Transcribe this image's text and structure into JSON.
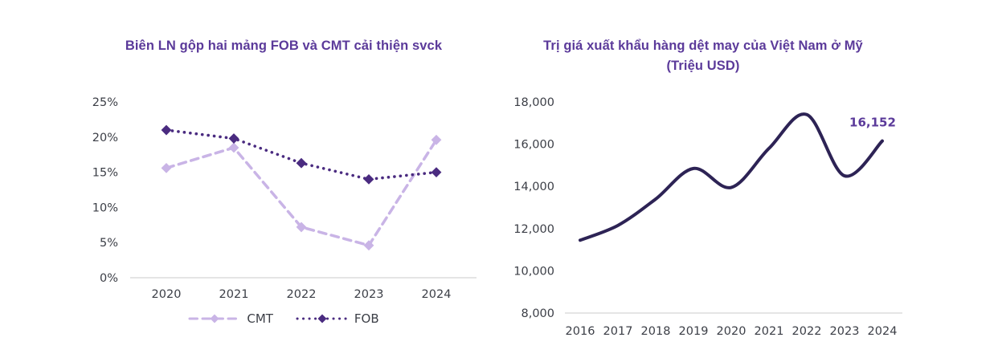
{
  "colors": {
    "page_bg": "#ffffff",
    "title": "#5B3A9A",
    "annotation": "#5B3A9A",
    "tick_text": "#3B3E46",
    "axis_line": "#D5D5D5",
    "cmt_series": "#C9B4E6",
    "fob_series": "#4A2B80",
    "export_line": "#2D2355"
  },
  "chart_data": [
    {
      "type": "line",
      "title": "Biên LN gộp hai mảng FOB và CMT cải thiện svck",
      "categories": [
        "2020",
        "2021",
        "2022",
        "2023",
        "2024"
      ],
      "series": [
        {
          "name": "CMT",
          "values": [
            15.6,
            18.5,
            7.2,
            4.6,
            19.6
          ],
          "color": "#C9B4E6",
          "style": "dashed",
          "marker": "diamond"
        },
        {
          "name": "FOB",
          "values": [
            21.0,
            19.8,
            16.3,
            14.0,
            15.0
          ],
          "color": "#4A2B80",
          "style": "dotted",
          "marker": "diamond"
        }
      ],
      "ylim": [
        0,
        25
      ],
      "ytick_values": [
        0,
        5,
        10,
        15,
        20,
        25
      ],
      "ytick_labels": [
        "0%",
        "5%",
        "10%",
        "15%",
        "20%",
        "25%"
      ],
      "grid": false,
      "legend_position": "bottom"
    },
    {
      "type": "line",
      "title": "Trị giá xuất khẩu hàng dệt may của Việt Nam ở Mỹ",
      "subtitle": "(Triệu USD)",
      "categories": [
        "2016",
        "2017",
        "2018",
        "2019",
        "2020",
        "2021",
        "2022",
        "2023",
        "2024"
      ],
      "values": [
        11450,
        12150,
        13400,
        14850,
        13950,
        15800,
        17400,
        14500,
        16152
      ],
      "color": "#2D2355",
      "smooth": true,
      "ylim": [
        8000,
        18000
      ],
      "ytick_values": [
        8000,
        10000,
        12000,
        14000,
        16000,
        18000
      ],
      "ytick_labels": [
        "8,000",
        "10,000",
        "12,000",
        "14,000",
        "16,000",
        "18,000"
      ],
      "grid": false,
      "annotation": {
        "text": "16,152",
        "x": "2024",
        "y": 16152
      }
    }
  ]
}
